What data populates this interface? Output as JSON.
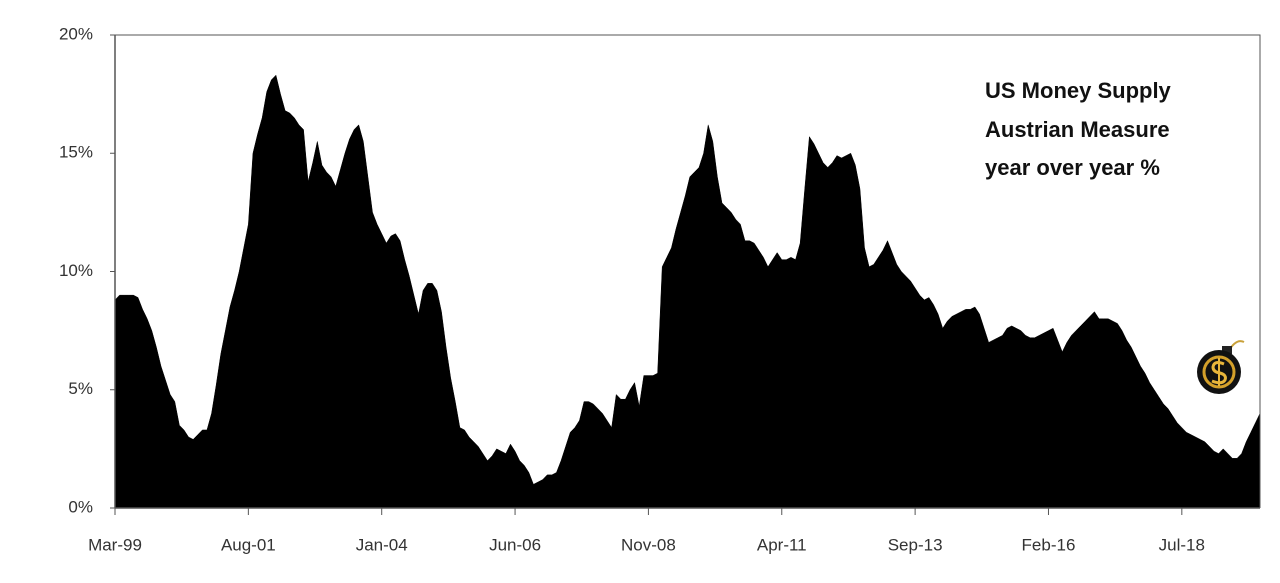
{
  "chart_data": {
    "type": "area",
    "title": [
      "US Money Supply",
      "Austrian Measure",
      "year over year %"
    ],
    "color": "#000000",
    "categories": [
      "Mar-99",
      null,
      null,
      null,
      null,
      null,
      null,
      null,
      null,
      null,
      null,
      null,
      null,
      null,
      null,
      null,
      null,
      null,
      null,
      null,
      null,
      null,
      null,
      null,
      null,
      null,
      null,
      null,
      null,
      "Aug-01",
      null,
      null,
      null,
      null,
      null,
      null,
      null,
      null,
      null,
      null,
      null,
      null,
      null,
      null,
      null,
      null,
      null,
      null,
      null,
      null,
      null,
      null,
      null,
      null,
      null,
      null,
      null,
      null,
      "Jan-04",
      null,
      null,
      null,
      null,
      null,
      null,
      null,
      null,
      null,
      null,
      null,
      null,
      null,
      null,
      null,
      null,
      null,
      null,
      null,
      null,
      null,
      null,
      null,
      null,
      null,
      null,
      null,
      null,
      "Jun-06",
      null,
      null,
      null,
      null,
      null,
      null,
      null,
      null,
      null,
      null,
      null,
      null,
      null,
      null,
      null,
      null,
      null,
      null,
      null,
      null,
      null,
      null,
      null,
      null,
      null,
      null,
      null,
      null,
      "Nov-08",
      null,
      null,
      null,
      null,
      null,
      null,
      null,
      null,
      null,
      null,
      null,
      null,
      null,
      null,
      null,
      null,
      null,
      null,
      null,
      null,
      null,
      null,
      null,
      null,
      null,
      null,
      null,
      null,
      "Apr-11",
      null,
      null,
      null,
      null,
      null,
      null,
      null,
      null,
      null,
      null,
      null,
      null,
      null,
      null,
      null,
      null,
      null,
      null,
      null,
      null,
      null,
      null,
      null,
      null,
      null,
      null,
      null,
      null,
      "Sep-13",
      null,
      null,
      null,
      null,
      null,
      null,
      null,
      null,
      null,
      null,
      null,
      null,
      null,
      null,
      null,
      null,
      null,
      null,
      null,
      null,
      null,
      null,
      null,
      null,
      null,
      null,
      null,
      null,
      "Feb-16",
      null,
      null,
      null,
      null,
      null,
      null,
      null,
      null,
      null,
      null,
      null,
      null,
      null,
      null,
      null,
      null,
      null,
      null,
      null,
      null,
      null,
      null,
      null,
      null,
      null,
      null,
      null,
      null,
      "Jul-18",
      null,
      null,
      null,
      null,
      null,
      null,
      null,
      null,
      null,
      null,
      null,
      null,
      null,
      null,
      null,
      null,
      null
    ],
    "values": [
      8.8,
      9.0,
      9.0,
      9.0,
      9.0,
      8.9,
      8.4,
      8.0,
      7.5,
      6.8,
      6.0,
      5.4,
      4.8,
      4.5,
      3.5,
      3.3,
      3.0,
      2.9,
      3.1,
      3.3,
      3.3,
      4.0,
      5.2,
      6.5,
      7.5,
      8.5,
      9.2,
      10.0,
      11.0,
      12.0,
      15.0,
      15.8,
      16.5,
      17.6,
      18.1,
      18.3,
      17.5,
      16.8,
      16.7,
      16.5,
      16.2,
      16.0,
      13.8,
      14.6,
      15.5,
      14.5,
      14.2,
      14.0,
      13.6,
      14.3,
      15.0,
      15.6,
      16.0,
      16.2,
      15.5,
      14.0,
      12.5,
      12.0,
      11.6,
      11.2,
      11.5,
      11.6,
      11.3,
      10.5,
      9.8,
      9.0,
      8.2,
      9.2,
      9.5,
      9.5,
      9.2,
      8.3,
      6.8,
      5.5,
      4.5,
      3.4,
      3.3,
      3.0,
      2.8,
      2.6,
      2.3,
      2.0,
      2.2,
      2.5,
      2.4,
      2.3,
      2.7,
      2.4,
      2.0,
      1.8,
      1.5,
      1.0,
      1.1,
      1.2,
      1.4,
      1.4,
      1.5,
      2.0,
      2.6,
      3.2,
      3.4,
      3.7,
      4.5,
      4.5,
      4.4,
      4.2,
      4.0,
      3.7,
      3.4,
      4.8,
      4.6,
      4.6,
      5.0,
      5.3,
      4.3,
      5.6,
      5.6,
      5.6,
      5.7,
      10.2,
      10.6,
      11.0,
      11.8,
      12.5,
      13.2,
      14.0,
      14.2,
      14.4,
      15.0,
      16.2,
      15.5,
      14.0,
      12.9,
      12.7,
      12.5,
      12.2,
      12.0,
      11.3,
      11.3,
      11.2,
      10.9,
      10.6,
      10.2,
      10.5,
      10.8,
      10.5,
      10.5,
      10.6,
      10.5,
      11.2,
      13.5,
      15.7,
      15.4,
      15.0,
      14.6,
      14.4,
      14.6,
      14.9,
      14.8,
      14.9,
      15.0,
      14.5,
      13.5,
      11.0,
      10.2,
      10.3,
      10.6,
      10.9,
      11.3,
      10.8,
      10.3,
      10.0,
      9.8,
      9.6,
      9.3,
      9.0,
      8.8,
      8.9,
      8.6,
      8.2,
      7.6,
      7.9,
      8.1,
      8.2,
      8.3,
      8.4,
      8.4,
      8.5,
      8.2,
      7.6,
      7.0,
      7.1,
      7.2,
      7.3,
      7.6,
      7.7,
      7.6,
      7.5,
      7.3,
      7.2,
      7.2,
      7.3,
      7.4,
      7.5,
      7.6,
      7.1,
      6.6,
      7.0,
      7.3,
      7.5,
      7.7,
      7.9,
      8.1,
      8.3,
      8.0,
      8.0,
      8.0,
      7.9,
      7.8,
      7.5,
      7.1,
      6.8,
      6.4,
      6.0,
      5.7,
      5.3,
      5.0,
      4.7,
      4.4,
      4.2,
      3.9,
      3.6,
      3.4,
      3.2,
      3.1,
      3.0,
      2.9,
      2.8,
      2.6,
      2.4,
      2.3,
      2.5,
      2.3,
      2.1,
      2.1,
      2.3,
      2.8,
      3.2,
      3.6,
      4.0
    ],
    "ylim": [
      0,
      20
    ],
    "yticks": [
      {
        "value": 0,
        "label": "0%"
      },
      {
        "value": 5,
        "label": "5%"
      },
      {
        "value": 10,
        "label": "10%"
      },
      {
        "value": 15,
        "label": "15%"
      },
      {
        "value": 20,
        "label": "20%"
      }
    ]
  }
}
